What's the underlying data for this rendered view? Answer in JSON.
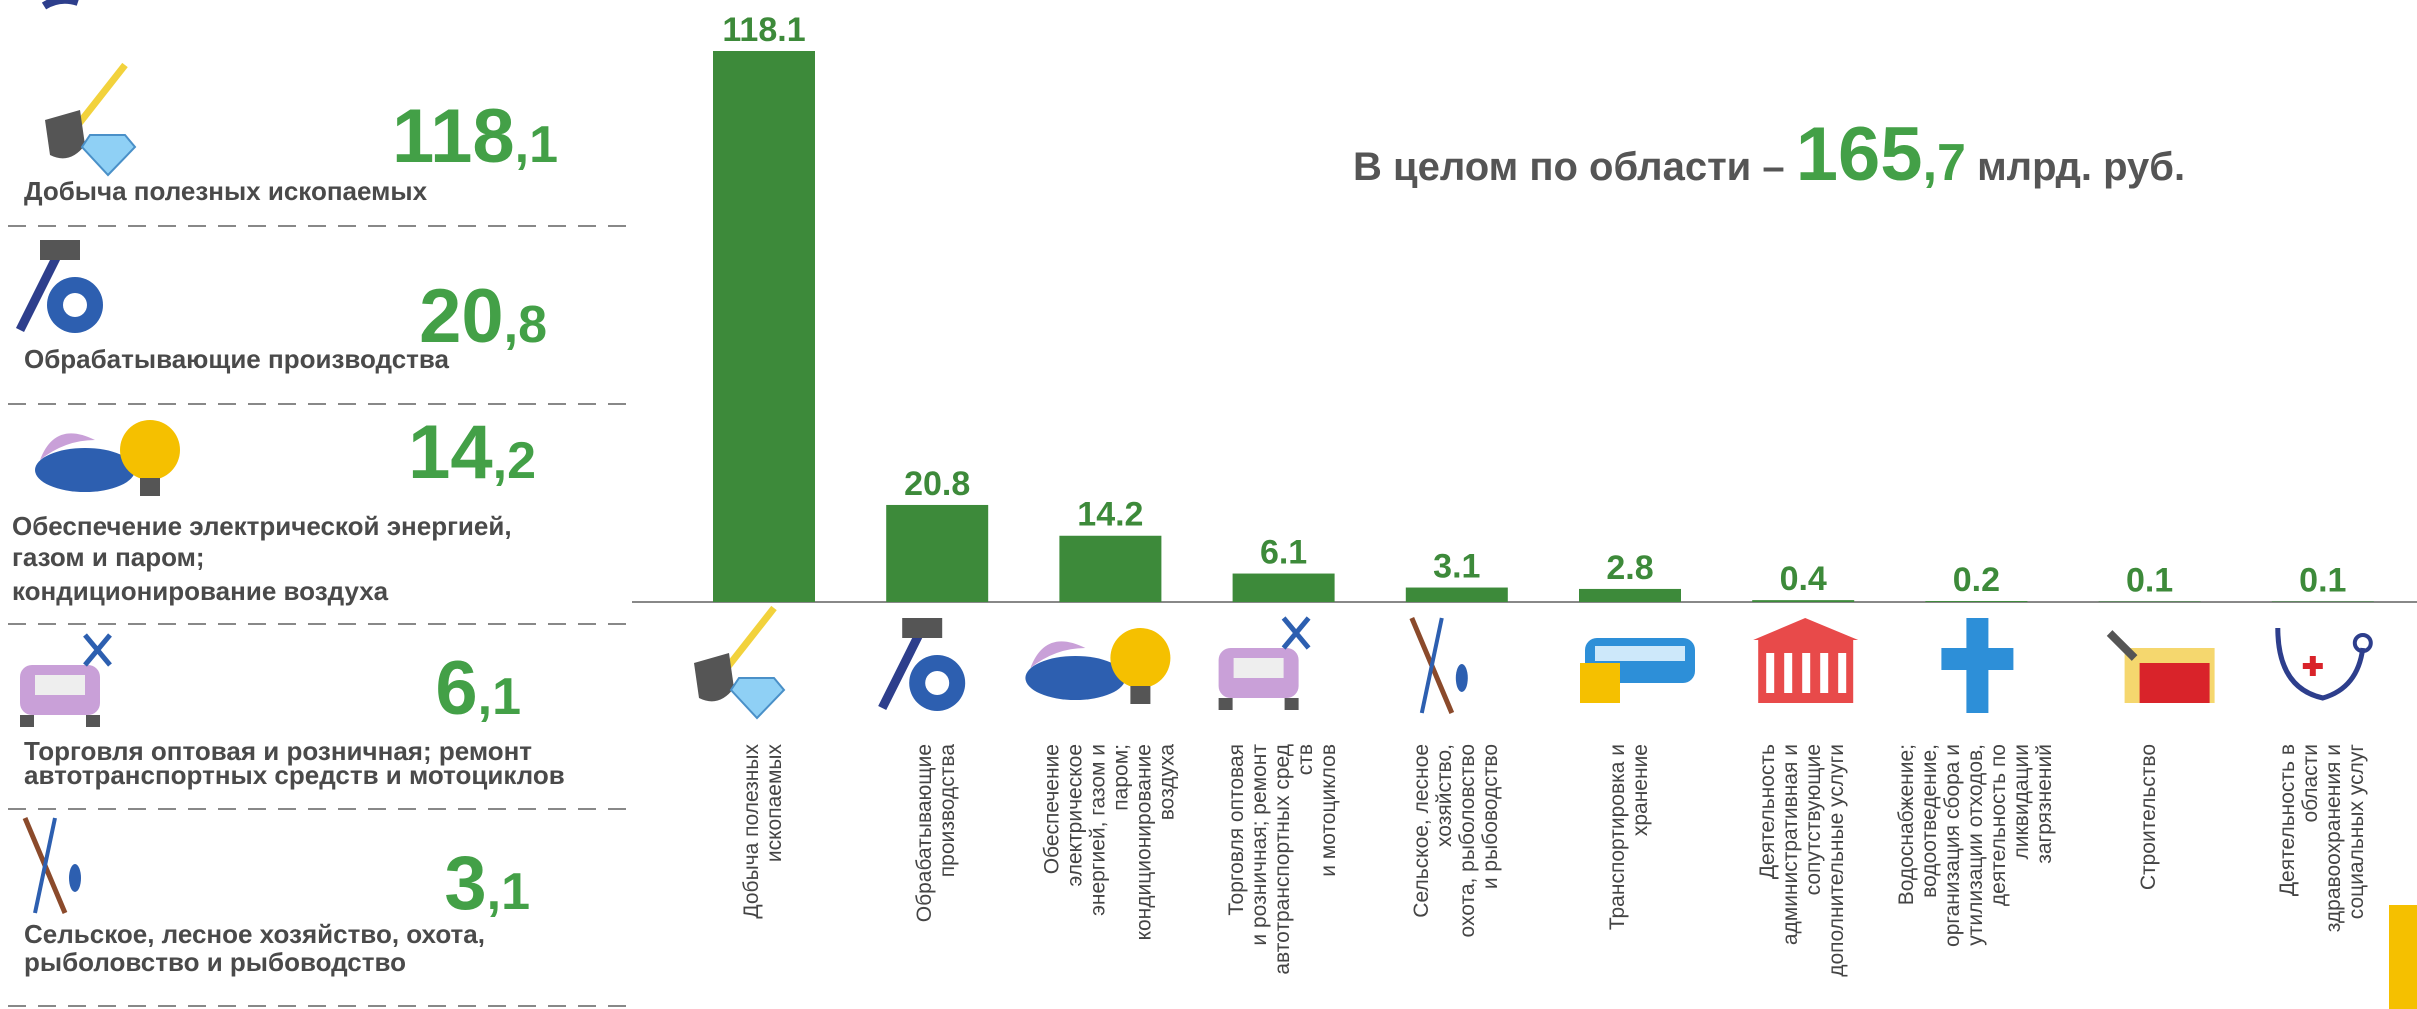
{
  "panel": {
    "items": [
      {
        "label": [
          "Добыча полезных ископаемых"
        ],
        "whole": "118",
        "fraction": ",1"
      },
      {
        "label": [
          "Обрабатывающие производства"
        ],
        "whole": "20",
        "fraction": ",8"
      },
      {
        "label": [
          "Обеспечение электрической энергией,",
          " газом и  паром;",
          "кондиционирование воздуха"
        ],
        "whole": "14",
        "fraction": ",2"
      },
      {
        "label": [
          "Торговля оптовая и розничная; ремонт",
          "автотранспортных средств и мотоциклов"
        ],
        "whole": "6",
        "fraction": ",1"
      },
      {
        "label": [
          "Сельское, лесное хозяйство, охота,",
          "рыболовство и рыбоводство"
        ],
        "whole": "3",
        "fraction": ",1"
      }
    ]
  },
  "headline": {
    "lead": "В целом по области –",
    "whole": "165",
    "fraction": ",7",
    "unit": "млрд. руб."
  },
  "chart_data": {
    "type": "bar",
    "color": "#3d8a3a",
    "categories": [
      [
        "Добыча полезных",
        "ископаемых"
      ],
      [
        "Обрабатывающие",
        "производства"
      ],
      [
        "Обеспечение",
        "электрическое",
        "энергией, газом и",
        "паром;",
        "кондиционирование",
        "воздуха"
      ],
      [
        "Торговля оптовая",
        "и розничная; ремонт",
        "автотранспортных сред",
        "ств",
        "и мотоциклов"
      ],
      [
        "Сельское, лесное",
        "хозяйство,",
        "охота, рыболовство",
        "и рыбоводство"
      ],
      [
        "Транспортировка и",
        "хранение"
      ],
      [
        "Деятельность",
        "административная и",
        "сопутствующие",
        "дополнительные услуги"
      ],
      [
        "Водоснабжение;",
        "водоотведение,",
        "организация сбора и",
        "утилизации отходов,",
        "деятельность по",
        "ликвидации",
        "загрязнений"
      ],
      [
        "Строительство"
      ],
      [
        "Деятельность в",
        "области",
        "здравоохранения и",
        "социальных услуг"
      ]
    ],
    "values": [
      118.1,
      20.8,
      14.2,
      6.1,
      3.1,
      2.8,
      0.4,
      0.2,
      0.1,
      0.1
    ],
    "ylim": [
      0,
      118.1
    ]
  }
}
